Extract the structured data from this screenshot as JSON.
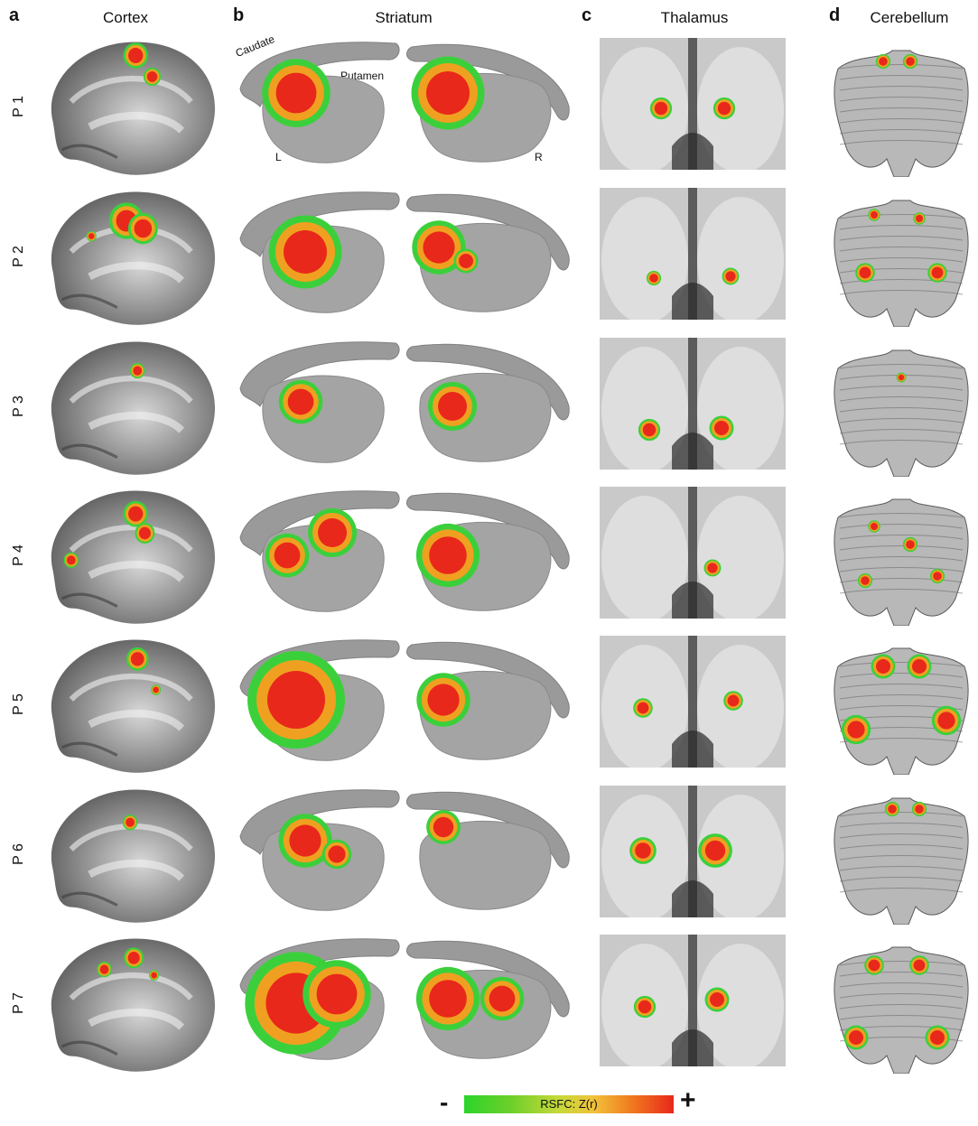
{
  "panels": [
    {
      "letter": "a",
      "title": "Cortex"
    },
    {
      "letter": "b",
      "title": "Striatum"
    },
    {
      "letter": "c",
      "title": "Thalamus"
    },
    {
      "letter": "d",
      "title": "Cerebellum"
    }
  ],
  "rows": [
    "P 1",
    "P 2",
    "P 3",
    "P 4",
    "P 5",
    "P 6",
    "P 7"
  ],
  "annotations": {
    "caudate": "Caudate",
    "putamen": "Putamen",
    "left": "L",
    "right": "R"
  },
  "legend": {
    "label": "RSFC: Z(r)",
    "minus": "-",
    "plus": "+"
  },
  "colors": {
    "surface": "#9a9a9a",
    "high": "#e8281b",
    "mid": "#f0a020",
    "low": "#3bd03b"
  }
}
